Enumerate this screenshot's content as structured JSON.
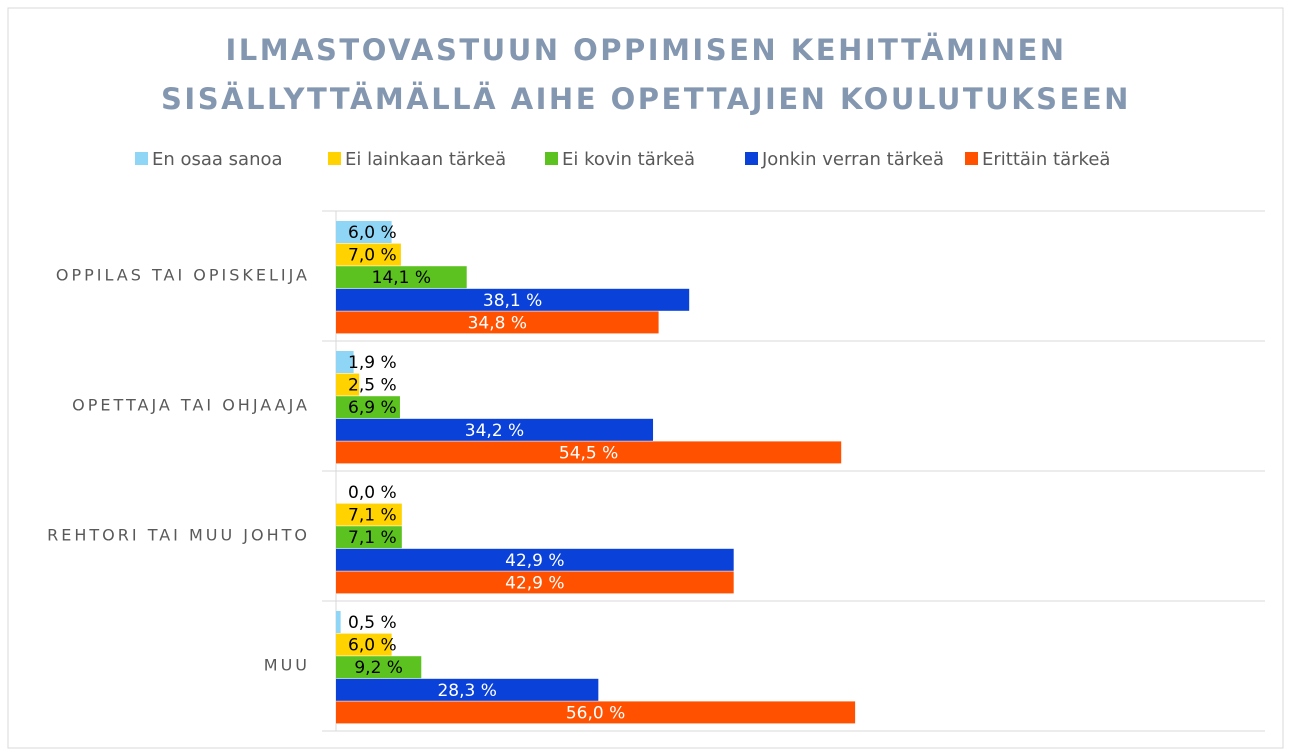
{
  "chart_data": {
    "type": "hbar",
    "title": [
      "ILMASTOVASTUUN OPPIMISEN KEHITTÄMINEN",
      "SISÄLLYTTÄMÄLLÄ AIHE OPETTAJIEN KOULUTUKSEEN"
    ],
    "categories": [
      "OPPILAS TAI OPISKELIJA",
      "OPETTAJA TAI OHJAAJA",
      "REHTORI TAI MUU JOHTO",
      "MUU"
    ],
    "series": [
      {
        "name": "En osaa sanoa",
        "color": "#8fd6f6",
        "values": [
          6.0,
          1.9,
          0.0,
          0.5
        ],
        "value_labels": [
          "6,0 %",
          "1,9 %",
          "0,0 %",
          "0,5 %"
        ]
      },
      {
        "name": "Ei lainkaan tärkeä",
        "color": "#ffd200",
        "values": [
          7.0,
          2.5,
          7.1,
          6.0
        ],
        "value_labels": [
          "7,0 %",
          "2,5 %",
          "7,1 %",
          "6,0 %"
        ]
      },
      {
        "name": "Ei kovin tärkeä",
        "color": "#5bc21f",
        "values": [
          14.1,
          6.9,
          7.1,
          9.2
        ],
        "value_labels": [
          "14,1 %",
          "6,9 %",
          "7,1 %",
          "9,2 %"
        ]
      },
      {
        "name": "Jonkin verran tärkeä",
        "color": "#0a41d8",
        "values": [
          38.1,
          34.2,
          42.9,
          28.3
        ],
        "value_labels": [
          "38,1 %",
          "34,2 %",
          "42,9 %",
          "28,3 %"
        ]
      },
      {
        "name": "Erittäin tärkeä",
        "color": "#ff5100",
        "values": [
          34.8,
          54.5,
          42.9,
          56.0
        ],
        "value_labels": [
          "34,8 %",
          "54,5 %",
          "42,9 %",
          "56,0 %"
        ]
      }
    ],
    "xlim": [
      0,
      100
    ]
  }
}
